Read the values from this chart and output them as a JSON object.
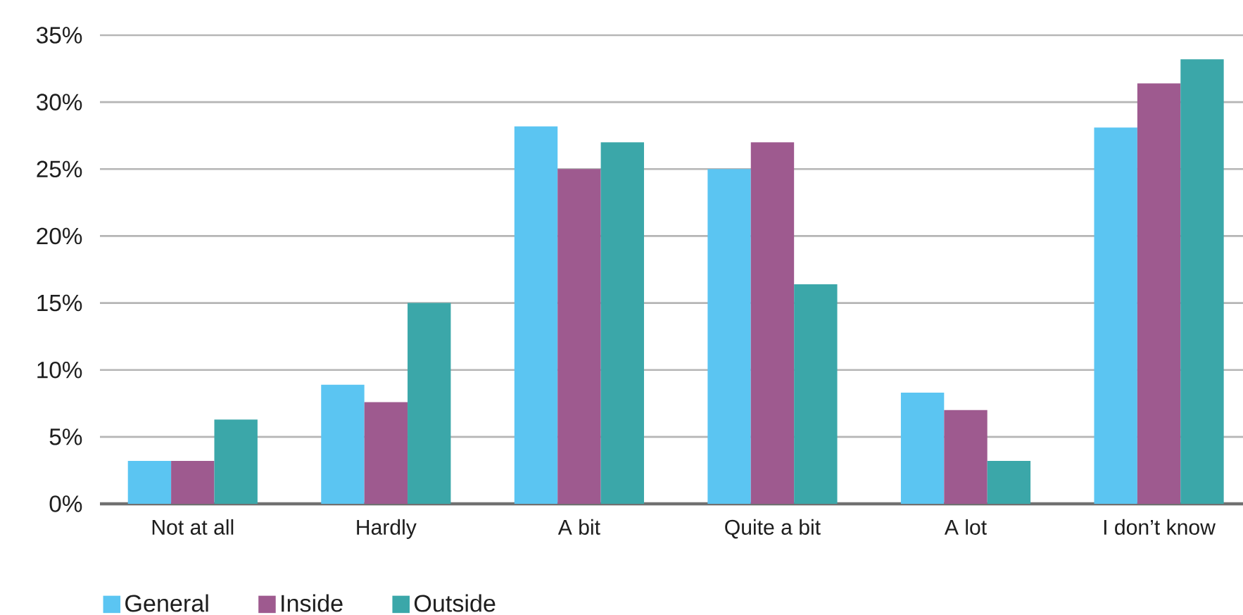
{
  "chart_data": {
    "type": "bar",
    "categories": [
      "Not at all",
      "Hardly",
      "A bit",
      "Quite a bit",
      "A lot",
      "I don’t know"
    ],
    "series": [
      {
        "name": "General",
        "color": "#5bc5f2",
        "values": [
          3.2,
          8.9,
          28.2,
          25.0,
          8.3,
          28.1
        ]
      },
      {
        "name": "Inside",
        "color": "#9e5a8f",
        "values": [
          3.2,
          7.6,
          25.0,
          27.0,
          7.0,
          31.4
        ]
      },
      {
        "name": "Outside",
        "color": "#3ba7a9",
        "values": [
          6.3,
          15.0,
          27.0,
          16.4,
          3.2,
          33.2
        ]
      }
    ],
    "ylim": [
      0,
      35
    ],
    "yticks": [
      {
        "value": 0,
        "label": "0%"
      },
      {
        "value": 5,
        "label": "5%"
      },
      {
        "value": 10,
        "label": "10%"
      },
      {
        "value": 15,
        "label": "15%"
      },
      {
        "value": 20,
        "label": "20%"
      },
      {
        "value": 25,
        "label": "25%"
      },
      {
        "value": 30,
        "label": "30%"
      },
      {
        "value": 35,
        "label": "35%"
      }
    ],
    "grid": "y",
    "legend": "bottom left"
  }
}
